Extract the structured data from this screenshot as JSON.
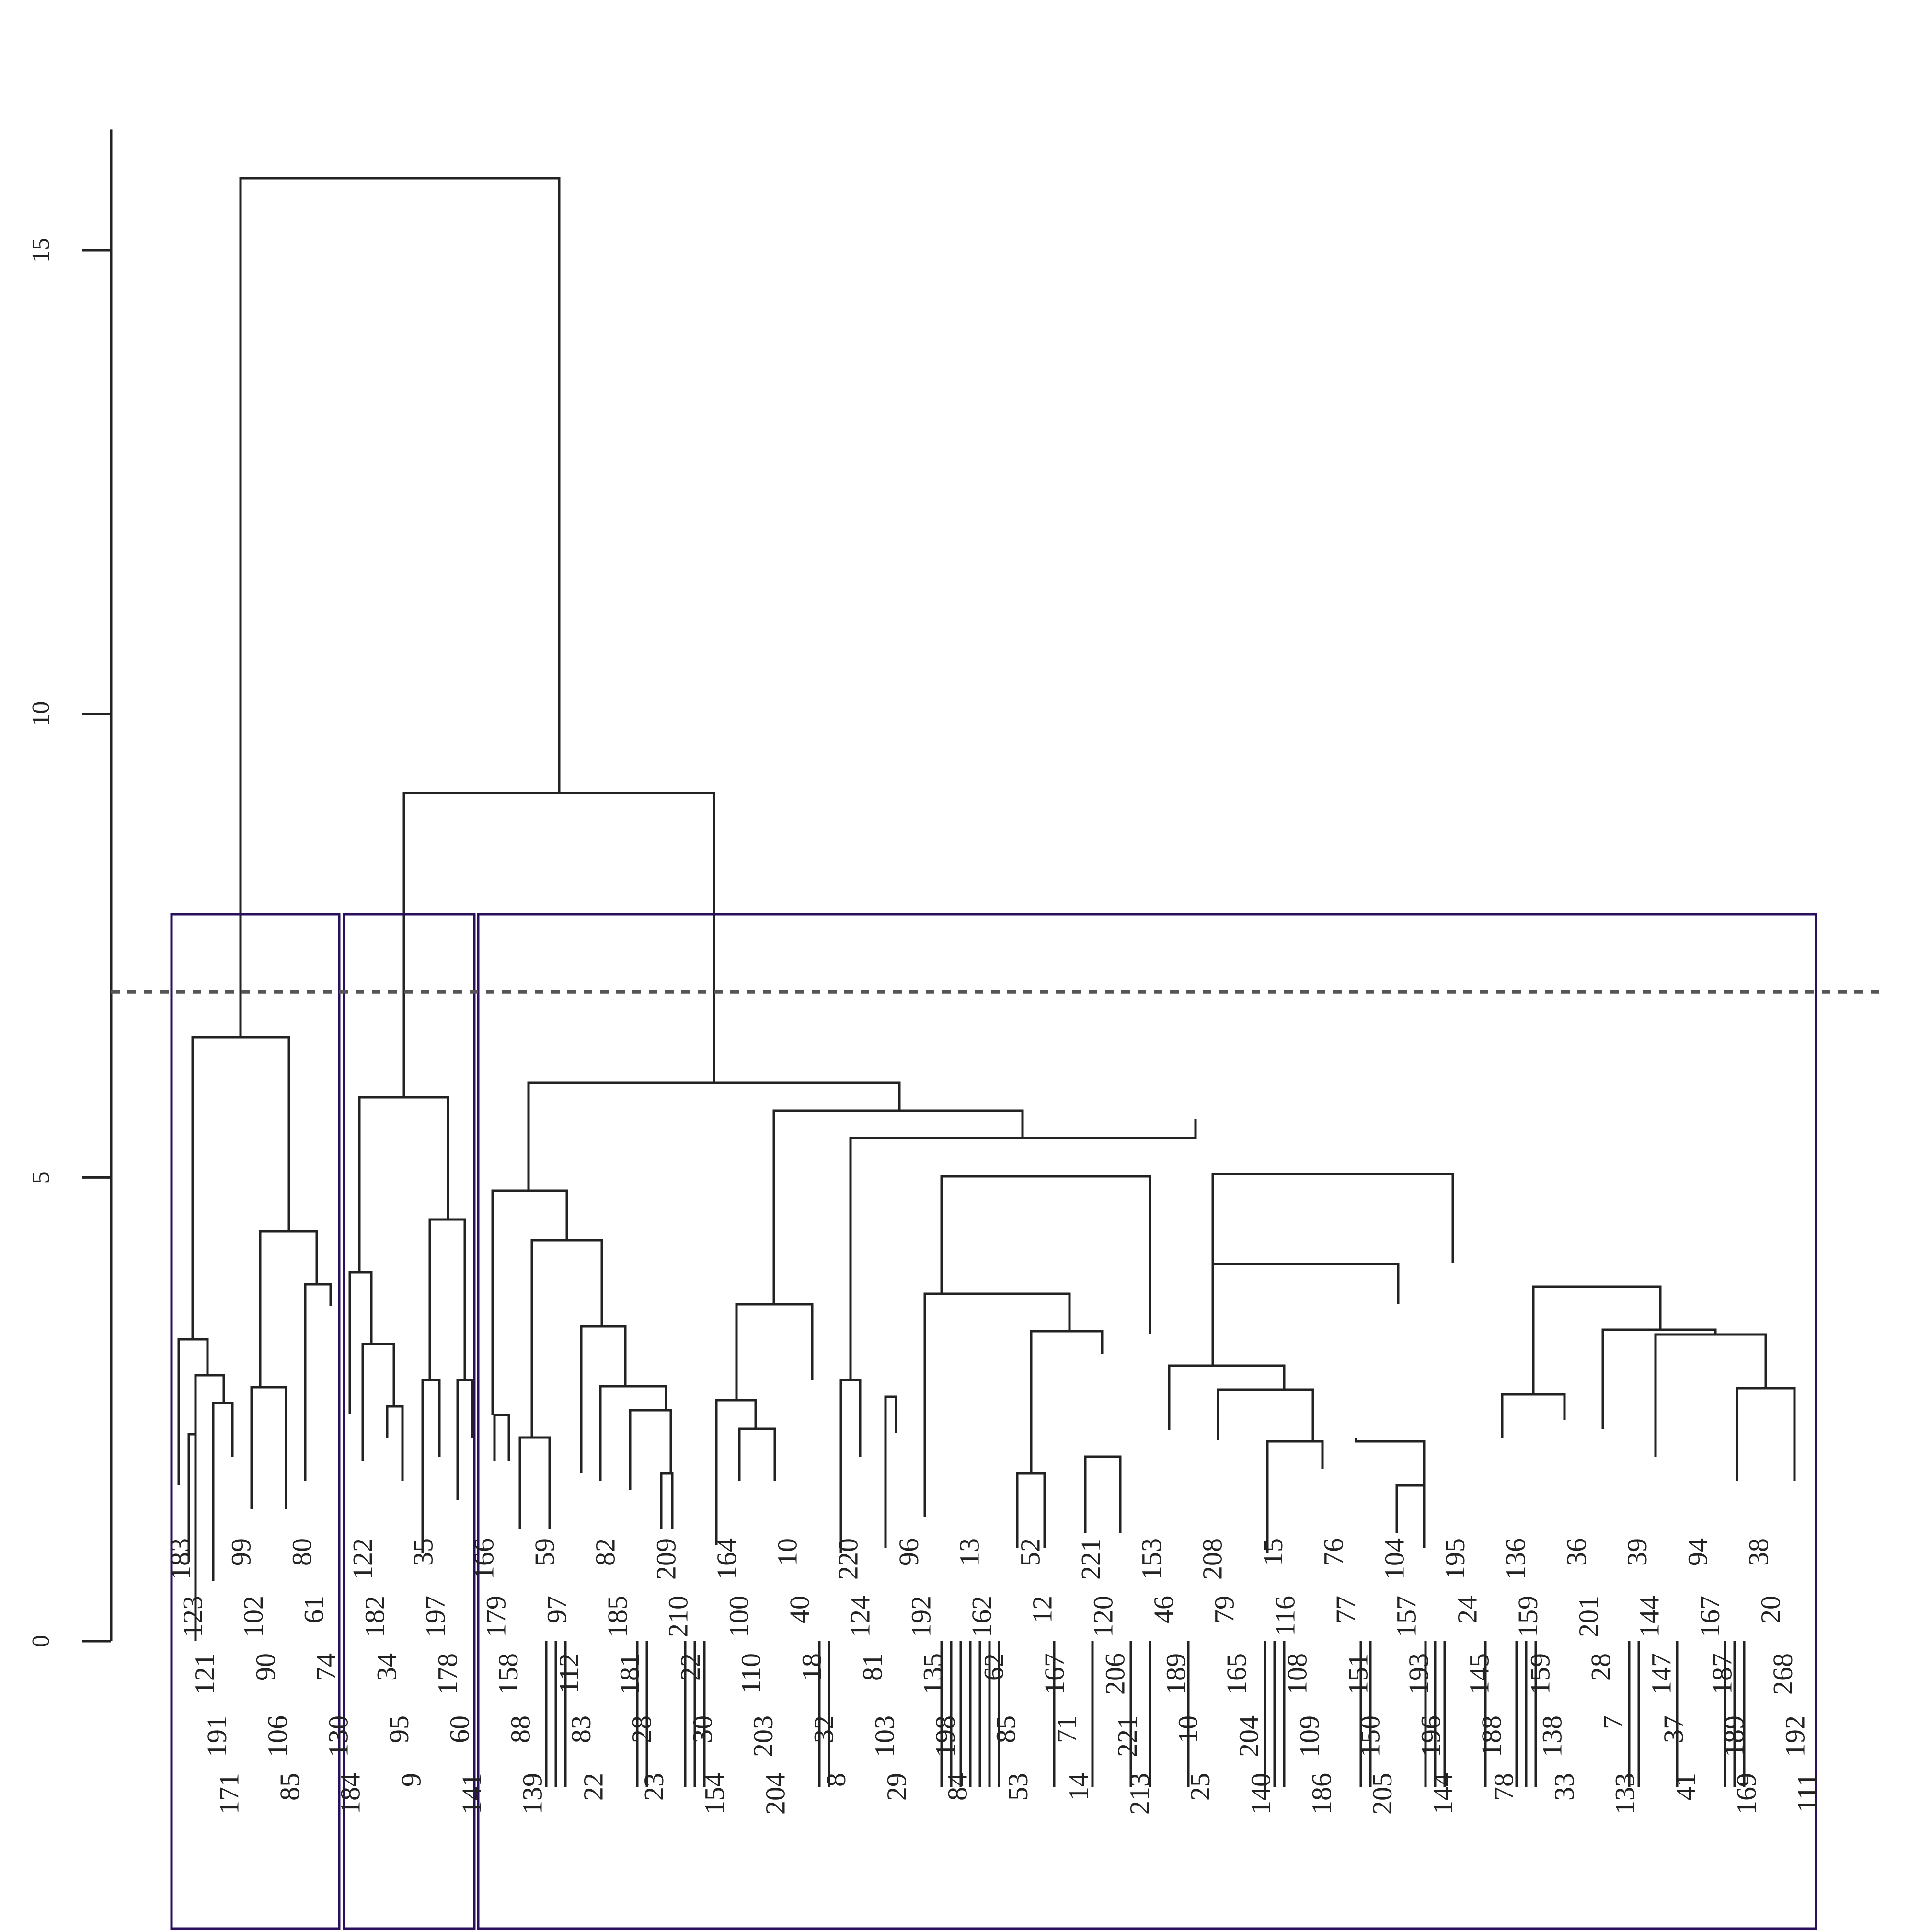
{
  "chart_data": {
    "type": "dendrogram",
    "title": "",
    "xlabel": "",
    "ylabel": "",
    "ylim": [
      0,
      16.3
    ],
    "yticks": [
      0,
      5,
      10,
      15
    ],
    "cut_height": 7.0,
    "n_clusters": 3,
    "colors": {
      "lines": "#222222",
      "cut_line": "#555555",
      "boxes": "#2a0f5c"
    },
    "merge_heights_major": [
      15.8,
      9.1,
      6.6,
      6.0,
      5.9,
      5.75,
      5.65,
      5.0,
      4.85,
      4.45,
      4.4,
      4.3,
      4.0
    ],
    "leaves": [
      "183",
      "123",
      "121",
      "191",
      "171",
      "99",
      "102",
      "90",
      "106",
      "85",
      "80",
      "61",
      "74",
      "130",
      "184",
      "122",
      "182",
      "34",
      "95",
      "9",
      "35",
      "197",
      "178",
      "60",
      "141",
      "166",
      "179",
      "158",
      "88",
      "139",
      "59",
      "97",
      "112",
      "83",
      "22",
      "82",
      "185",
      "181",
      "28",
      "23",
      "209",
      "210",
      "22",
      "30",
      "154",
      "164",
      "100",
      "110",
      "203",
      "204",
      "10",
      "40",
      "18",
      "32",
      "8",
      "220",
      "124",
      "81",
      "103",
      "29",
      "96",
      "192",
      "135",
      "198",
      "84",
      "13",
      "162",
      "62",
      "85",
      "53",
      "52",
      "12",
      "167",
      "71",
      "14",
      "221",
      "120",
      "206",
      "221",
      "213",
      "153",
      "46",
      "189",
      "10",
      "25",
      "208",
      "79",
      "165",
      "204",
      "140",
      "15",
      "116",
      "108",
      "109",
      "186",
      "76",
      "77",
      "151",
      "150",
      "205",
      "104",
      "157",
      "193",
      "196",
      "144",
      "195",
      "24",
      "145",
      "188",
      "78",
      "136",
      "159",
      "159",
      "138",
      "33",
      "36",
      "201",
      "28",
      "7",
      "133",
      "39",
      "144",
      "147",
      "37",
      "41",
      "94",
      "167",
      "187",
      "189",
      "169",
      "38",
      "20",
      "268",
      "192",
      "111"
    ]
  }
}
